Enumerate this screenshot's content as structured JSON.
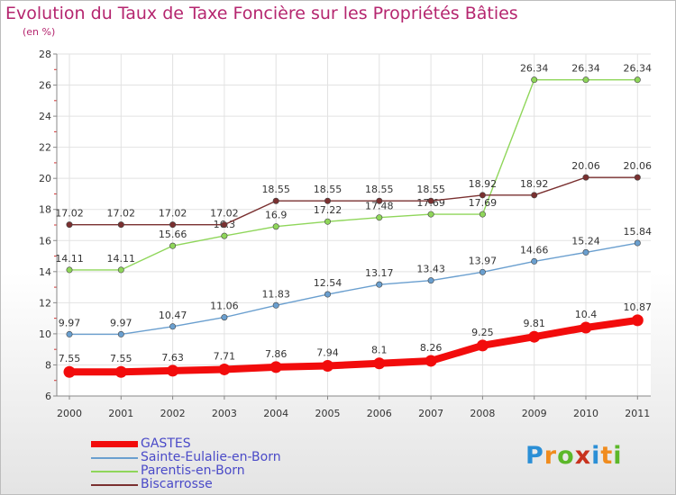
{
  "header": {
    "title": "Evolution du Taux de Taxe Foncière sur les Propriétés Bâties",
    "unit": "(en %)"
  },
  "logo": {
    "text": "Proxiti",
    "colors": [
      "#2b8fd6",
      "#f08c1e",
      "#5cb82a",
      "#c8321e",
      "#2b8fd6",
      "#f08c1e",
      "#5cb82a"
    ]
  },
  "chart_data": {
    "type": "line",
    "title": "Evolution du Taux de Taxe Foncière sur les Propriétés Bâties",
    "ylabel": "(en %)",
    "xlabel": "",
    "x": [
      "2000",
      "2001",
      "2002",
      "2003",
      "2004",
      "2005",
      "2006",
      "2007",
      "2008",
      "2009",
      "2010",
      "2011"
    ],
    "ylim": [
      6,
      28
    ],
    "yticks": [
      "6",
      "8",
      "10",
      "12",
      "14",
      "16",
      "18",
      "20",
      "22",
      "24",
      "26",
      "28"
    ],
    "grid": true,
    "legend_position": "bottom-left",
    "series": [
      {
        "name": "GASTES",
        "color": "#f20c0c",
        "values": [
          7.55,
          7.55,
          7.63,
          7.71,
          7.86,
          7.94,
          8.1,
          8.26,
          9.25,
          9.81,
          10.4,
          10.87
        ],
        "labels": [
          "7.55",
          "7.55",
          "7.63",
          "7.71",
          "7.86",
          "7.94",
          "8.1",
          "8.26",
          "9.25",
          "9.81",
          "10.4",
          "10.87"
        ]
      },
      {
        "name": "Sainte-Eulalie-en-Born",
        "color": "#6a9fcf",
        "values": [
          9.97,
          9.97,
          10.47,
          11.06,
          11.83,
          12.54,
          13.17,
          13.43,
          13.97,
          14.66,
          15.24,
          15.84
        ],
        "labels": [
          "9.97",
          "9.97",
          "10.47",
          "11.06",
          "11.83",
          "12.54",
          "13.17",
          "13.43",
          "13.97",
          "14.66",
          "15.24",
          "15.84"
        ]
      },
      {
        "name": "Parentis-en-Born",
        "color": "#8fd65a",
        "values": [
          14.11,
          14.11,
          15.66,
          16.3,
          16.9,
          17.22,
          17.48,
          17.69,
          17.69,
          26.34,
          26.34,
          26.34
        ],
        "labels": [
          "14.11",
          "14.11",
          "15.66",
          "16.3",
          "16.9",
          "17.22",
          "17.48",
          "17.69",
          "17.69",
          "26.34",
          "26.34",
          "26.34"
        ]
      },
      {
        "name": "Biscarrosse",
        "color": "#7a3030",
        "values": [
          17.02,
          17.02,
          17.02,
          17.02,
          18.55,
          18.55,
          18.55,
          18.55,
          18.92,
          18.92,
          20.06,
          20.06
        ],
        "labels": [
          "17.02",
          "17.02",
          "17.02",
          "17.02",
          "18.55",
          "18.55",
          "18.55",
          "18.55",
          "18.92",
          "18.92",
          "20.06",
          "20.06"
        ]
      }
    ]
  }
}
